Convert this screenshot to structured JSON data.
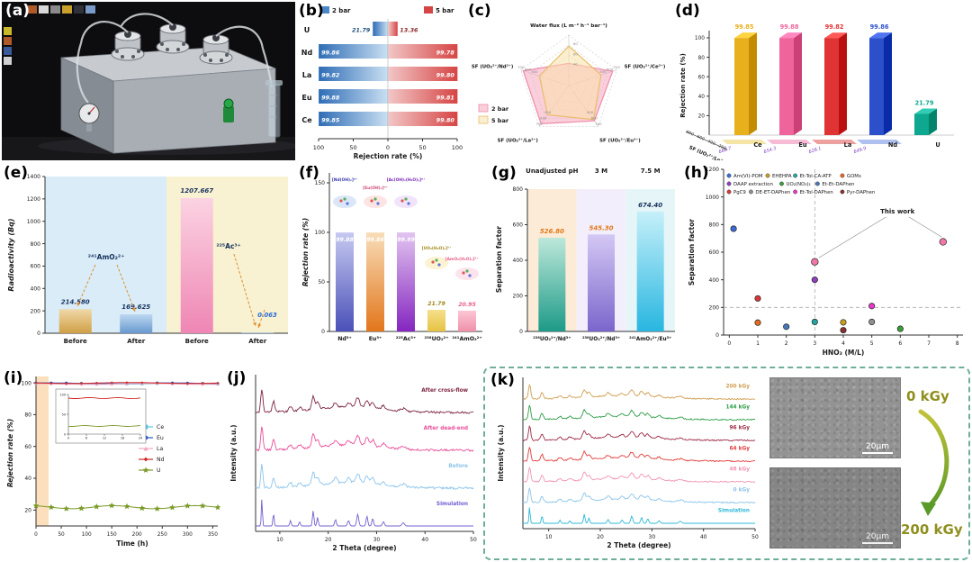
{
  "panels": {
    "a": {
      "label": "(a)"
    },
    "b": {
      "label": "(b)"
    },
    "c": {
      "label": "(c)"
    },
    "d": {
      "label": "(d)"
    },
    "e": {
      "label": "(e)"
    },
    "f": {
      "label": "(f)"
    },
    "g": {
      "label": "(g)"
    },
    "h": {
      "label": "(h)"
    },
    "i": {
      "label": "(i)"
    },
    "j": {
      "label": "(j)"
    },
    "k": {
      "label": "(k)",
      "sem_top_label": "0 kGy",
      "sem_bottom_label": "200 kGy",
      "scale_label": "20μm"
    }
  },
  "chart_data": [
    {
      "id": "b",
      "type": "bar",
      "subtype": "diverging-horizontal",
      "xlabel": "Rejection rate (%)",
      "categories": [
        "U",
        "Nd",
        "La",
        "Eu",
        "Ce"
      ],
      "series": [
        {
          "name": "2 bar",
          "color": "#4a86c8",
          "values": [
            21.79,
            99.86,
            99.82,
            99.88,
            99.85
          ],
          "labels": [
            "21.79",
            "99.86",
            "99.82",
            "99.88",
            "99.85"
          ]
        },
        {
          "name": "5 bar",
          "color": "#d64545",
          "values": [
            13.36,
            99.78,
            99.8,
            99.81,
            99.8
          ],
          "labels": [
            "13.36",
            "99.78",
            "99.80",
            "99.81",
            "99.80"
          ]
        }
      ],
      "xticks": [
        "100",
        "50",
        "0",
        "50",
        "100"
      ],
      "xlim": [
        -100,
        100
      ]
    },
    {
      "id": "c",
      "type": "radar",
      "axes": [
        "Water flux (L m⁻² h⁻¹ bar⁻¹)",
        "SF (UO₂²⁺/Ce³⁺)",
        "SF (UO₂²⁺/Eu³⁺)",
        "SF (UO₂²⁺/La³⁺)",
        "SF (UO₂²⁺/Nd³⁺)"
      ],
      "axis_max": [
        100,
        700,
        700,
        700,
        700
      ],
      "flux_ticks": [
        "40",
        "60",
        "80"
      ],
      "sf_ticks": [
        "500",
        "600",
        "700"
      ],
      "series": [
        {
          "name": "2 bar",
          "stroke": "#ee8aa8",
          "fill": "rgba(246,168,192,0.55)",
          "values": [
            44,
            640,
            605,
            655,
            665
          ]
        },
        {
          "name": "5 bar",
          "stroke": "#e8be6a",
          "fill": "rgba(250,226,170,0.55)",
          "values": [
            78,
            470,
            585,
            500,
            430
          ]
        }
      ]
    },
    {
      "id": "d",
      "type": "bar",
      "subtype": "3d",
      "zlabel": "Rejection rate (%)",
      "zticks": [
        "20",
        "40",
        "60",
        "80",
        "100"
      ],
      "categories": [
        "Ce",
        "Eu",
        "La",
        "Nd",
        "U"
      ],
      "values": [
        99.85,
        99.88,
        99.82,
        99.86,
        21.79
      ],
      "value_labels": [
        "99.85",
        "99.88",
        "99.82",
        "99.86",
        "21.79"
      ],
      "bar_colors": [
        "#e8b01c",
        "#f0649c",
        "#e03434",
        "#2c50cc",
        "#0ea890"
      ],
      "sf_axis_label": "SF (UO₂²⁺/Ln³⁺)",
      "sf_ticks": [
        "200",
        "400",
        "600",
        "800"
      ],
      "sf_values": [
        "666.7",
        "654.3",
        "628.1",
        "649.9"
      ],
      "floor_colors": [
        "#f4e4a6",
        "#f6bcd6",
        "#eda0a0",
        "#b0c0ee"
      ]
    },
    {
      "id": "e",
      "type": "bar",
      "ylabel": "Radioactivity (Bq)",
      "ylim": [
        0,
        1400
      ],
      "yticks": [
        "0",
        "200",
        "400",
        "600",
        "800",
        "1000",
        "1200",
        "1400"
      ],
      "categories": [
        "Before",
        "After",
        "Before",
        "After"
      ],
      "values": [
        214.58,
        169.625,
        1207.667,
        0.063
      ],
      "value_labels": [
        "214.580",
        "169.625",
        "1207.667",
        "0.063"
      ],
      "annotations": [
        "²⁴¹AmO₂²⁺",
        "²²⁵Ac³⁺"
      ],
      "bg_colors": [
        "#d9ecf8",
        "#f8f1d2"
      ]
    },
    {
      "id": "f",
      "type": "bar",
      "ylabel": "Rejection rate (%)",
      "ylim": [
        0,
        160
      ],
      "yticks": [
        "0",
        "50",
        "100",
        "150"
      ],
      "categories": [
        "Nd³⁺",
        "Eu³⁺",
        "²²⁵Ac³⁺",
        "²³⁸UO₂²⁺",
        "²⁴¹AmO₂²⁺"
      ],
      "values": [
        99.88,
        99.86,
        99.99,
        21.79,
        20.95
      ],
      "value_labels": [
        "99.88",
        "99.86",
        "99.99",
        "21.79",
        "20.95"
      ],
      "species": [
        "[Nd(OH)ₓ]ⁿ⁺",
        "[Eu(OH)ₓ]ⁿ⁺",
        "[Ac(OH)ₓ(H₂O)ᵧ]ⁿ⁺",
        "[UO₂(H₂O)ₓ]²⁺",
        "[AmO₂(H₂O)ₓ]²⁺"
      ],
      "species_colors": [
        "#3a3ab0",
        "#d04878",
        "#7828b8",
        "#a08818",
        "#e8608a"
      ],
      "bar_gradients": [
        [
          "#c6c9f0",
          "#4a50b8"
        ],
        [
          "#f8ddb8",
          "#e2761b"
        ],
        [
          "#e2c4f0",
          "#8426c0"
        ],
        [
          "#f5e08a",
          "#e6c242"
        ],
        [
          "#fbc6d4",
          "#f090aa"
        ]
      ]
    },
    {
      "id": "g",
      "type": "bar",
      "ylabel": "Separation factor",
      "ylim": [
        0,
        800
      ],
      "yticks": [
        "0",
        "200",
        "400",
        "600",
        "800"
      ],
      "conditions": [
        "Unadjusted pH",
        "3 M",
        "7.5 M"
      ],
      "categories": [
        "²³⁸UO₂²⁺/Nd³⁺",
        "²³⁸UO₂²⁺/Nd³⁺",
        "²⁴¹AmO₂²⁺/Eu³⁺"
      ],
      "values": [
        526.8,
        545.3,
        674.4
      ],
      "value_labels": [
        "526.80",
        "545.30",
        "674.40"
      ],
      "value_label_colors": [
        "#e07818",
        "#e07818",
        "#16325c"
      ],
      "band_colors": [
        "#fcebd7",
        "#f3eefb",
        "#e6f5f8"
      ],
      "bar_gradients": [
        [
          "#bde8da",
          "#1d9a88"
        ],
        [
          "#d4c8f4",
          "#7a66cc"
        ],
        [
          "#c6f0fa",
          "#28b6e0"
        ]
      ]
    },
    {
      "id": "h",
      "type": "scatter",
      "ylabel": "Separation factor",
      "xlabel": "HNO₃ (M/L)",
      "ylim": [
        0,
        1200
      ],
      "yticks": [
        "0",
        "200",
        "400",
        "600",
        "800",
        "1000",
        "1200"
      ],
      "xlim": [
        -0.2,
        8.2
      ],
      "xticks": [
        "0",
        "1",
        "2",
        "3",
        "4",
        "5",
        "6",
        "7",
        "8"
      ],
      "legend": [
        {
          "name": "Am(VI)-POM",
          "color": "#3a6cd8"
        },
        {
          "name": "EHEHPA",
          "color": "#c8a020"
        },
        {
          "name": "Et-Tol-CA-ATP",
          "color": "#20a8a0"
        },
        {
          "name": "GOMs",
          "color": "#e86820"
        },
        {
          "name": "DAAP extraction",
          "color": "#9040c0"
        },
        {
          "name": "UO₂(NO₃)₂",
          "color": "#38a038"
        },
        {
          "name": "Et-Et-DAPhen",
          "color": "#4878b8"
        },
        {
          "name": "PgC9",
          "color": "#d83838"
        },
        {
          "name": "DE-ET-DAPhen",
          "color": "#909090"
        },
        {
          "name": "Et-Tol-DAPhen",
          "color": "#e838c8"
        },
        {
          "name": "Pyr-DAPhen",
          "color": "#883030"
        }
      ],
      "points": [
        {
          "x": 0.15,
          "y": 770,
          "series": "Am(VI)-POM",
          "color": "#3a6cd8"
        },
        {
          "x": 1,
          "y": 265,
          "series": "PgC9",
          "color": "#d83838"
        },
        {
          "x": 1,
          "y": 90,
          "series": "GOMs",
          "color": "#e86820"
        },
        {
          "x": 2,
          "y": 60,
          "series": "Et-Et-DAPhen",
          "color": "#4878b8"
        },
        {
          "x": 3,
          "y": 400,
          "series": "DAAP extraction",
          "color": "#9040c0"
        },
        {
          "x": 3,
          "y": 95,
          "series": "Et-Tol-CA-ATP",
          "color": "#20a8a0"
        },
        {
          "x": 4,
          "y": 92,
          "series": "EHEHPA",
          "color": "#c8a020"
        },
        {
          "x": 4,
          "y": 35,
          "series": "Pyr-DAPhen",
          "color": "#883030"
        },
        {
          "x": 5,
          "y": 210,
          "series": "Et-Tol-DAPhen",
          "color": "#e838c8"
        },
        {
          "x": 5,
          "y": 95,
          "series": "DE-ET-DAPhen",
          "color": "#909090"
        },
        {
          "x": 6,
          "y": 45,
          "series": "UO₂(NO₃)₂",
          "color": "#38a038"
        },
        {
          "x": 3,
          "y": 530,
          "series": "This work",
          "color": "#f078a8"
        },
        {
          "x": 7.5,
          "y": 675,
          "series": "This work",
          "color": "#f078a8"
        }
      ],
      "this_work_label": "This work",
      "ref_line_y": 200,
      "ref_line_x": 3
    },
    {
      "id": "i",
      "type": "line",
      "ylabel": "Rejection rate (%)",
      "xlabel": "Time (h)",
      "xlim": [
        0,
        360
      ],
      "xticks": [
        "0",
        "50",
        "100",
        "150",
        "200",
        "250",
        "300",
        "350"
      ],
      "ylim": [
        10,
        104
      ],
      "yticks": [
        "20",
        "40",
        "60",
        "80",
        "100"
      ],
      "series": [
        {
          "name": "Ce",
          "color": "#58c8e8",
          "mean": 99.5
        },
        {
          "name": "Eu",
          "color": "#2858c8",
          "mean": 99.7
        },
        {
          "name": "La",
          "color": "#f0a8bc",
          "mean": 99.3
        },
        {
          "name": "Nd",
          "color": "#d02828",
          "mean": 99.9
        },
        {
          "name": "U",
          "color": "#7a9a28",
          "mean": 21.8
        }
      ],
      "inset": {
        "xticks": [
          "0",
          "6",
          "12",
          "18",
          "24"
        ],
        "yticks": [
          "0",
          "50",
          "100"
        ]
      }
    },
    {
      "id": "j",
      "type": "line",
      "subtype": "xrd",
      "ylabel": "Intensity (a.u.)",
      "xlabel": "2 Theta (degree)",
      "xlim": [
        5,
        50
      ],
      "xticks": [
        "10",
        "20",
        "30",
        "40",
        "50"
      ],
      "curves": [
        {
          "label": "Simulation",
          "color": "#7060d0",
          "sharp": true
        },
        {
          "label": "Before",
          "color": "#8cc4ea",
          "sharp": false
        },
        {
          "label": "After dead-end",
          "color": "#ea4f9a",
          "sharp": false
        },
        {
          "label": "After cross-flow",
          "color": "#7e2640",
          "sharp": false
        }
      ],
      "peak_positions": [
        6.3,
        8.7,
        12.2,
        14.1,
        16.9,
        17.8,
        21.5,
        24.2,
        26.1,
        28.0,
        29.2,
        31.4,
        35.5
      ]
    },
    {
      "id": "k",
      "type": "line",
      "subtype": "xrd",
      "ylabel": "Intensity (a.u.)",
      "xlabel": "2 Theta (degree)",
      "xlim": [
        5,
        50
      ],
      "xticks": [
        "10",
        "20",
        "30",
        "40",
        "50"
      ],
      "curves": [
        {
          "label": "Simulation",
          "color": "#30b8d8",
          "sharp": true
        },
        {
          "label": "0 kGy",
          "color": "#8cc4ea",
          "sharp": false
        },
        {
          "label": "48 kGy",
          "color": "#f294b4",
          "sharp": false
        },
        {
          "label": "64 kGy",
          "color": "#e23c3c",
          "sharp": false
        },
        {
          "label": "96 kGy",
          "color": "#9e2c48",
          "sharp": false
        },
        {
          "label": "144 kGy",
          "color": "#2e9e48",
          "sharp": false
        },
        {
          "label": "200 kGy",
          "color": "#cf9f52",
          "sharp": false
        }
      ],
      "peak_positions": [
        6.3,
        8.7,
        12.2,
        14.1,
        16.9,
        17.8,
        21.5,
        24.2,
        26.1,
        28.0,
        29.2,
        31.4,
        35.5
      ]
    }
  ]
}
